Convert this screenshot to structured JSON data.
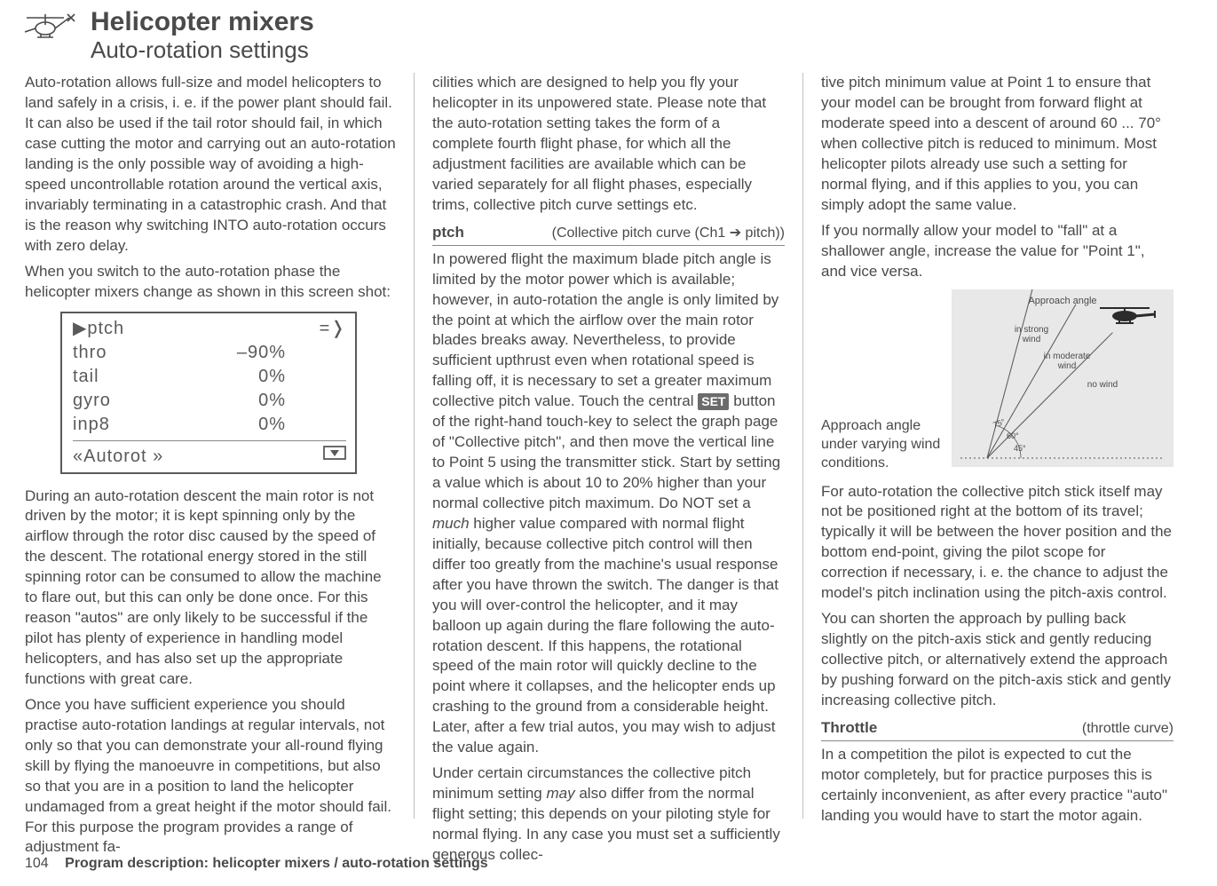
{
  "header": {
    "title": "Helicopter mixers",
    "subtitle": "Auto-rotation settings"
  },
  "col1": {
    "p1": "Auto-rotation allows full-size and model helicopters to land safely in a crisis, i. e. if the power plant should fail. It can also be used if the tail rotor should fail, in which case cutting the motor and carrying out an auto-rotation landing is the only possible way of avoiding a high-speed uncontrollable rotation around the vertical axis, invariably terminating in a catastrophic crash. And that is the reason why switching INTO auto-rotation occurs with zero delay.",
    "p2": "When you switch to the auto-rotation phase the helicopter mixers change as shown in this screen shot:",
    "screen": {
      "rows": [
        {
          "label": "▶ptch",
          "value": "",
          "arrow": "=❭"
        },
        {
          "label": "thro",
          "value": "–90%",
          "arrow": ""
        },
        {
          "label": "tail",
          "value": "0%",
          "arrow": ""
        },
        {
          "label": "gyro",
          "value": "0%",
          "arrow": ""
        },
        {
          "label": "inp8",
          "value": "0%",
          "arrow": ""
        }
      ],
      "footer_left": "«Autorot  »",
      "footer_icon": "model-select-icon"
    },
    "p3": "During an auto-rotation descent the main rotor is not driven by the motor; it is kept spinning only by the airflow through the rotor disc caused by the speed of the descent. The rotational energy stored in the still spinning rotor can be consumed to allow the machine to flare out, but this can only be done once. For this reason \"autos\" are only likely to be successful if the pilot has plenty of experience in handling model helicopters, and has also set up the appropriate functions with great care.",
    "p4": "Once you have sufficient experience you should practise auto-rotation landings at regular intervals, not only so that you can demonstrate your all-round flying skill by flying the manoeuvre in competitions, but also so that you are in a position to land the helicopter undamaged from a great height if the motor should fail. For this purpose the program provides a range of adjustment fa-"
  },
  "col2": {
    "p1": "cilities which are designed to help you fly your helicopter in its unpowered state. Please note that the auto-rotation setting takes the form of a complete fourth flight phase, for which all the adjustment facilities are available which can be varied separately for all flight phases, especially trims, collective pitch curve settings etc.",
    "section_ptch": {
      "left": "ptch",
      "right_pre": "(Collective pitch curve (Ch1 ",
      "right_arrow": "➔",
      "right_post": " pitch))"
    },
    "p2a": "In powered flight the maximum blade pitch angle is limited by the motor power which is available; however, in auto-rotation the angle is only limited by the point at which the airflow over the main rotor blades breaks away. Nevertheless, to provide sufficient upthrust even when rotational speed is falling off, it is necessary to set a greater maximum collective pitch value. Touch the central ",
    "set_label": "SET",
    "p2b": " button of the right-hand touch-key to select the graph page of \"Collective pitch\", and then move the vertical line to Point 5 using the transmitter stick. Start by setting a value which is about 10 to 20% higher than your normal collective pitch maximum. Do NOT set a ",
    "p2_much": "much",
    "p2c": " higher value compared with normal flight initially, because collective pitch control will then differ too greatly from the machine's usual response after you have thrown the switch. The danger is that you will over-control the helicopter, and it may balloon up again during the flare following the auto-rotation descent. If this happens, the rotational speed of the main rotor will quickly decline to the point where it collapses, and the helicopter ends up crashing to the ground from a considerable height. Later, after a few trial autos, you may wish to adjust the value again.",
    "p3a": "Under certain circumstances the collective pitch minimum setting ",
    "p3_may": "may",
    "p3b": " also differ from the normal flight setting; this depends on your piloting style for normal flying. In any case you must set a sufficiently generous collec-"
  },
  "col3": {
    "p1": "tive pitch minimum value at Point 1 to ensure that your model can be brought from forward flight at moderate speed into a descent of around 60 ... 70° when collective pitch is reduced to minimum. Most helicopter pilots already use such a setting for normal flying, and if this applies to you, you can simply adopt the same value.",
    "p2": "If you normally allow your model to \"fall\" at a shallower angle, increase the value for \"Point 1\", and vice versa.",
    "diagram": {
      "title": "Approach angle",
      "labels": {
        "strong": "in strong\nwind",
        "moderate": "in moderate\nwind",
        "none": "no wind",
        "a45": "45°",
        "a60": "60°",
        "a75": "75°"
      },
      "colors": {
        "bg": "#e8e8e8",
        "line": "#555555",
        "text": "#4a4a4a",
        "heli": "#2b2b2b"
      }
    },
    "caption": "Approach angle under varying wind conditions.",
    "p3": "For auto-rotation the collective pitch stick itself may not be positioned right at the bottom of its travel; typically it will be between the hover position and the bottom end-point, giving the pilot scope for correction if necessary, i. e. the chance to adjust the model's pitch inclination using the pitch-axis control.",
    "p4": "You can shorten the approach by pulling back slightly on the pitch-axis stick and gently reducing collective pitch, or alternatively extend the approach by pushing forward on the pitch-axis stick and gently increasing collective pitch.",
    "section_throttle": {
      "left": "Throttle",
      "right": "(throttle curve)"
    },
    "p5": "In a competition the pilot is expected to cut the motor completely, but for practice purposes this is certainly inconvenient, as after every practice \"auto\" landing you would have to start the motor again."
  },
  "footer": {
    "page_num": "104",
    "page_text": "Program description: helicopter mixers / auto-rotation settings"
  }
}
